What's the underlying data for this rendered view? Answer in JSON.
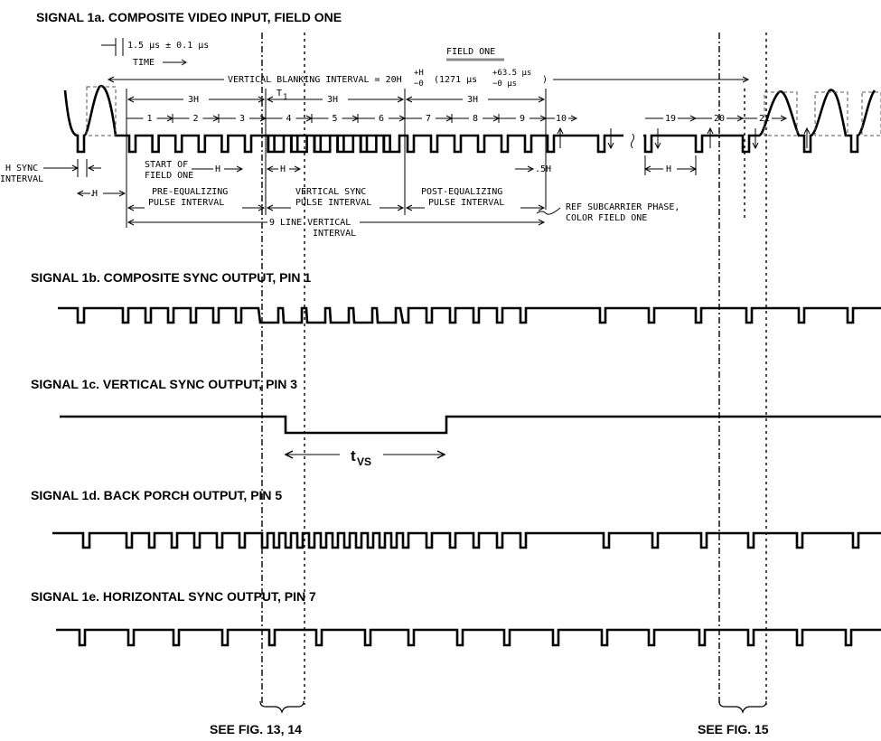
{
  "titles": {
    "s1a": "SIGNAL 1a. COMPOSITE VIDEO INPUT, FIELD ONE",
    "s1b": "SIGNAL 1b. COMPOSITE SYNC OUTPUT, PIN 1",
    "s1c": "SIGNAL 1c. VERTICAL SYNC OUTPUT, PIN 3",
    "s1d": "SIGNAL 1d. BACK PORCH OUTPUT, PIN 5",
    "s1e": "SIGNAL 1e. HORIZONTAL SYNC OUTPUT, PIN 7"
  },
  "annotations": {
    "timing": "1.5 μs ± 0.1 μs",
    "time": "TIME",
    "field_one": "FIELD ONE",
    "vbi": "VERTICAL BLANKING INTERVAL = 20H",
    "vbi_tol": "+H",
    "vbi_tol2": "−0",
    "vbi_us": "(1271 μs",
    "vbi_us_tol": "+63.5 μs",
    "vbi_us_tol2": "−0 μs",
    "vbi_close": ")",
    "t1": "T",
    "t1_sub": "1",
    "three_h": "3H",
    "line_nums": [
      "1",
      "2",
      "3",
      "4",
      "5",
      "6",
      "7",
      "8",
      "9",
      "10",
      "19",
      "20",
      "21"
    ],
    "h": "H",
    "half_h": ".5H",
    "h_sync": "H SYNC",
    "interval": "INTERVAL",
    "start_of": "START OF",
    "field_one_b": "FIELD ONE",
    "pre_eq1": "PRE-EQUALIZING",
    "pre_eq2": "PULSE INTERVAL",
    "vsync1": "VERTICAL SYNC",
    "vsync2": "PULSE INTERVAL",
    "post_eq1": "POST-EQUALIZING",
    "post_eq2": "PULSE INTERVAL",
    "nine_line1": "9 LINE VERTICAL",
    "nine_line2": "INTERVAL",
    "ref1": "REF SUBCARRIER PHASE,",
    "ref2": "COLOR FIELD ONE"
  },
  "tvs": "t",
  "tvs_sub": "VS",
  "captions": {
    "fig13": "SEE FIG. 13, 14",
    "fig15": "SEE FIG. 15"
  }
}
